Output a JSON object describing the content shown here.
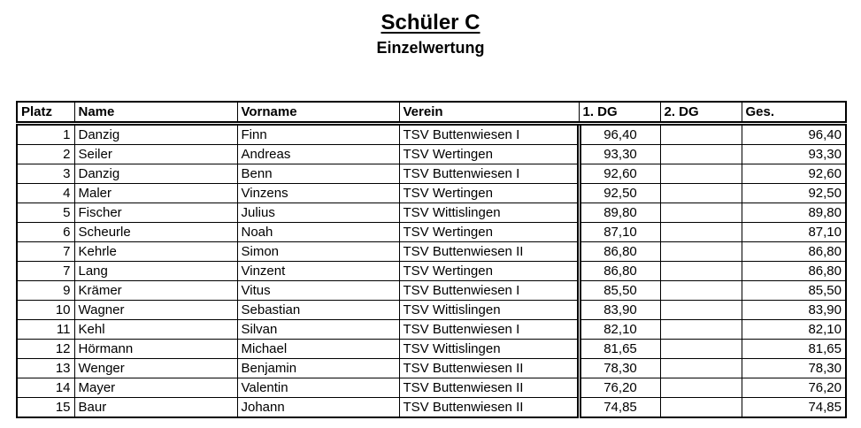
{
  "page": {
    "title": "Schüler C",
    "subtitle": "Einzelwertung"
  },
  "colors": {
    "text": "#000000",
    "border": "#000000",
    "background": "#ffffff"
  },
  "table": {
    "headers": {
      "platz": "Platz",
      "name": "Name",
      "vorname": "Vorname",
      "verein": "Verein",
      "dg1": "1. DG",
      "dg2": "2. DG",
      "ges": "Ges."
    },
    "rows": [
      {
        "platz": "1",
        "name": "Danzig",
        "vorname": "Finn",
        "verein": "TSV Buttenwiesen I",
        "dg1": "96,40",
        "dg2": "",
        "ges": "96,40"
      },
      {
        "platz": "2",
        "name": "Seiler",
        "vorname": "Andreas",
        "verein": "TSV Wertingen",
        "dg1": "93,30",
        "dg2": "",
        "ges": "93,30"
      },
      {
        "platz": "3",
        "name": "Danzig",
        "vorname": "Benn",
        "verein": "TSV Buttenwiesen I",
        "dg1": "92,60",
        "dg2": "",
        "ges": "92,60"
      },
      {
        "platz": "4",
        "name": "Maler",
        "vorname": "Vinzens",
        "verein": "TSV Wertingen",
        "dg1": "92,50",
        "dg2": "",
        "ges": "92,50"
      },
      {
        "platz": "5",
        "name": "Fischer",
        "vorname": "Julius",
        "verein": "TSV Wittislingen",
        "dg1": "89,80",
        "dg2": "",
        "ges": "89,80"
      },
      {
        "platz": "6",
        "name": "Scheurle",
        "vorname": "Noah",
        "verein": "TSV Wertingen",
        "dg1": "87,10",
        "dg2": "",
        "ges": "87,10"
      },
      {
        "platz": "7",
        "name": "Kehrle",
        "vorname": "Simon",
        "verein": "TSV Buttenwiesen II",
        "dg1": "86,80",
        "dg2": "",
        "ges": "86,80"
      },
      {
        "platz": "7",
        "name": "Lang",
        "vorname": "Vinzent",
        "verein": "TSV Wertingen",
        "dg1": "86,80",
        "dg2": "",
        "ges": "86,80"
      },
      {
        "platz": "9",
        "name": "Krämer",
        "vorname": "Vitus",
        "verein": "TSV Buttenwiesen I",
        "dg1": "85,50",
        "dg2": "",
        "ges": "85,50"
      },
      {
        "platz": "10",
        "name": "Wagner",
        "vorname": "Sebastian",
        "verein": "TSV Wittislingen",
        "dg1": "83,90",
        "dg2": "",
        "ges": "83,90"
      },
      {
        "platz": "11",
        "name": "Kehl",
        "vorname": "Silvan",
        "verein": "TSV Buttenwiesen I",
        "dg1": "82,10",
        "dg2": "",
        "ges": "82,10"
      },
      {
        "platz": "12",
        "name": "Hörmann",
        "vorname": "Michael",
        "verein": "TSV Wittislingen",
        "dg1": "81,65",
        "dg2": "",
        "ges": "81,65"
      },
      {
        "platz": "13",
        "name": "Wenger",
        "vorname": "Benjamin",
        "verein": "TSV Buttenwiesen II",
        "dg1": "78,30",
        "dg2": "",
        "ges": "78,30"
      },
      {
        "platz": "14",
        "name": "Mayer",
        "vorname": "Valentin",
        "verein": "TSV Buttenwiesen II",
        "dg1": "76,20",
        "dg2": "",
        "ges": "76,20"
      },
      {
        "platz": "15",
        "name": "Baur",
        "vorname": "Johann",
        "verein": "TSV Buttenwiesen II",
        "dg1": "74,85",
        "dg2": "",
        "ges": "74,85"
      }
    ]
  }
}
